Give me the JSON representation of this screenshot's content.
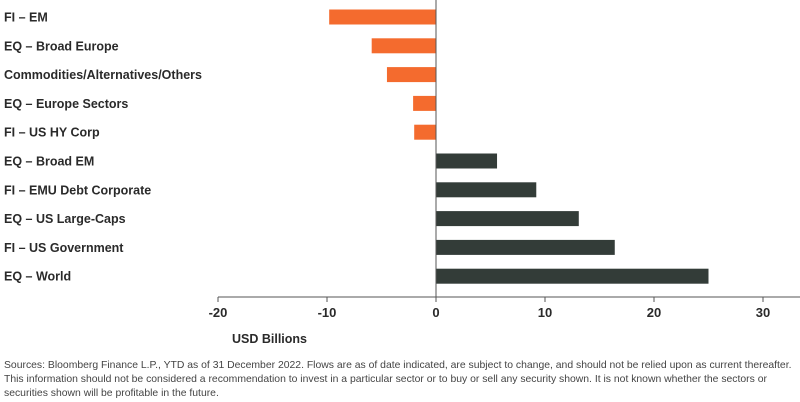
{
  "chart_data": {
    "type": "bar",
    "orientation": "horizontal",
    "categories": [
      "FI – EM",
      "EQ – Broad Europe",
      "Commodities/Alternatives/Others",
      "EQ – Europe Sectors",
      "FI – US HY Corp",
      "EQ – Broad EM",
      "FI – EMU Debt Corporate",
      "EQ – US Large-Caps",
      "FI – US Government",
      "EQ – World"
    ],
    "values": [
      -9.8,
      -5.9,
      -4.5,
      -2.1,
      -2.0,
      5.6,
      9.2,
      13.1,
      16.4,
      25.0
    ],
    "xlabel": "USD Billions",
    "xlim": [
      -20,
      30
    ],
    "xticks": [
      -20,
      -10,
      0,
      10,
      20,
      30
    ],
    "colors": {
      "negative": "#f46b2e",
      "positive": "#333c38"
    },
    "grid": false
  },
  "footnote": "Sources: Bloomberg Finance L.P., YTD as of 31 December 2022. Flows are as of date indicated, are subject to change, and should not be relied upon as current thereafter. This information should not be considered a recommendation to invest in a particular sector or to buy or sell any security shown. It is not known whether the sectors or securities shown will be profitable in the future."
}
